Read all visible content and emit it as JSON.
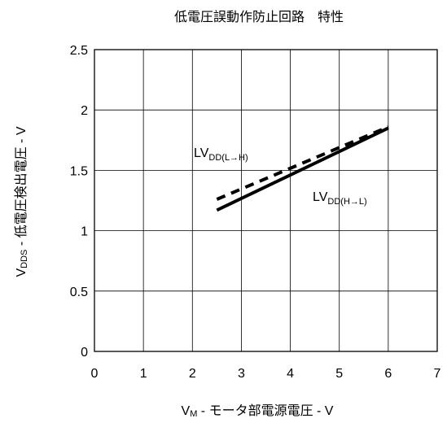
{
  "chart_data": {
    "type": "line",
    "title": "低電圧誤動作防止回路　特性",
    "xlabel": {
      "main": "V",
      "sub": "M",
      "rest": " - モータ部電源電圧 - V"
    },
    "ylabel": {
      "main": "V",
      "sub": "DDS",
      "rest": " - 低電圧検出電圧 - V"
    },
    "xlim": [
      0,
      7
    ],
    "ylim": [
      0,
      2.5
    ],
    "x_ticks": [
      0,
      1,
      2,
      3,
      4,
      5,
      6,
      7
    ],
    "y_ticks": [
      0,
      0.5,
      1,
      1.5,
      2,
      2.5
    ],
    "x_tick_labels": [
      "0",
      "1",
      "2",
      "3",
      "4",
      "5",
      "6",
      "7"
    ],
    "y_tick_labels": [
      "0",
      "0.5",
      "1",
      "1.5",
      "2",
      "2.5"
    ],
    "grid": true,
    "series": [
      {
        "label_main": "LV",
        "label_sub": "DD(L→H)",
        "style": "dashed",
        "color": "#000000",
        "x": [
          2.5,
          6.0
        ],
        "y": [
          1.26,
          1.86
        ]
      },
      {
        "label_main": "LV",
        "label_sub": "DD(H→L)",
        "style": "solid",
        "color": "#000000",
        "x": [
          2.5,
          6.0
        ],
        "y": [
          1.17,
          1.85
        ]
      }
    ]
  }
}
